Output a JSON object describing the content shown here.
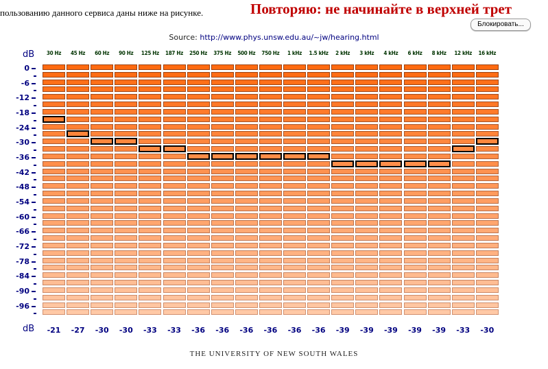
{
  "top_text": "пользованию данного сервиса даны ниже на рисунке.",
  "warning_text": "Повторяю: не начинайте в верхней трет",
  "block_button_label": "Блокировать...",
  "source_label": "Source:",
  "source_url": "http://www.phys.unsw.edu.au/~jw/hearing.html",
  "unit_top": "dB",
  "unit_bottom": "dB",
  "frequencies": [
    "30 Hz",
    "45 Hz",
    "60 Hz",
    "90 Hz",
    "125 Hz",
    "187 Hz",
    "250 Hz",
    "375 Hz",
    "500 Hz",
    "750 Hz",
    "1 kHz",
    "1.5 kHz",
    "2 kHz",
    "3 kHz",
    "4 kHz",
    "6 kHz",
    "8 kHz",
    "12 kHz",
    "16 kHz"
  ],
  "y_ticks": [
    "0",
    "-6",
    "-12",
    "-18",
    "-24",
    "-30",
    "-36",
    "-42",
    "-48",
    "-54",
    "-60",
    "-66",
    "-72",
    "-78",
    "-84",
    "-90",
    "-96"
  ],
  "thresholds": [
    "-21",
    "-27",
    "-30",
    "-30",
    "-33",
    "-33",
    "-36",
    "-36",
    "-36",
    "-36",
    "-36",
    "-36",
    "-39",
    "-39",
    "-39",
    "-39",
    "-39",
    "-33",
    "-30"
  ],
  "selected_levels_db": [
    -21,
    -27,
    -30,
    -30,
    -33,
    -33,
    -36,
    -36,
    -36,
    -36,
    -36,
    -36,
    -39,
    -39,
    -39,
    -39,
    -39,
    -33,
    -30
  ],
  "levels_count": 34,
  "level_step_db": 3,
  "colors": {
    "cell_top": "#ff6a10",
    "cell_bottom": "#ffc9a6",
    "selected_border": "#000000",
    "axis_text": "#000080",
    "warning": "#c00000"
  },
  "footer_text": "THE UNIVERSITY OF NEW SOUTH WALES"
}
